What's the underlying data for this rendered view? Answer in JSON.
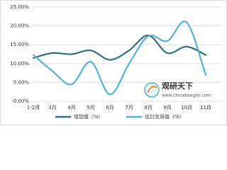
{
  "chart_data": {
    "type": "line",
    "categories": [
      "1-2月",
      "3月",
      "4月",
      "5月",
      "6月",
      "7月",
      "8月",
      "9月",
      "10月",
      "11月"
    ],
    "series": [
      {
        "name": "增加值（%）",
        "color": "#2e6f86",
        "values": [
          11.5,
          12.8,
          12.5,
          13.5,
          11,
          13.5,
          17.5,
          12.8,
          14.5,
          12.3
        ]
      },
      {
        "name": "出口交货值（%）",
        "color": "#4eb3dc",
        "values": [
          12.3,
          8,
          4.5,
          10.5,
          1.8,
          10,
          17.3,
          16,
          21,
          7
        ]
      }
    ],
    "ylim": [
      0,
      25
    ],
    "yticks": [
      {
        "value": 0,
        "label": "0.00%"
      },
      {
        "value": 5,
        "label": "5.00%"
      },
      {
        "value": 10,
        "label": "10.00%"
      },
      {
        "value": 15,
        "label": "15.00%"
      },
      {
        "value": 20,
        "label": "20.00%"
      },
      {
        "value": 25,
        "label": "25.00%"
      }
    ],
    "grid": true,
    "legend": "bottom",
    "watermark": {
      "name": "观研天下",
      "url": "www.chinabaogao.com"
    }
  }
}
